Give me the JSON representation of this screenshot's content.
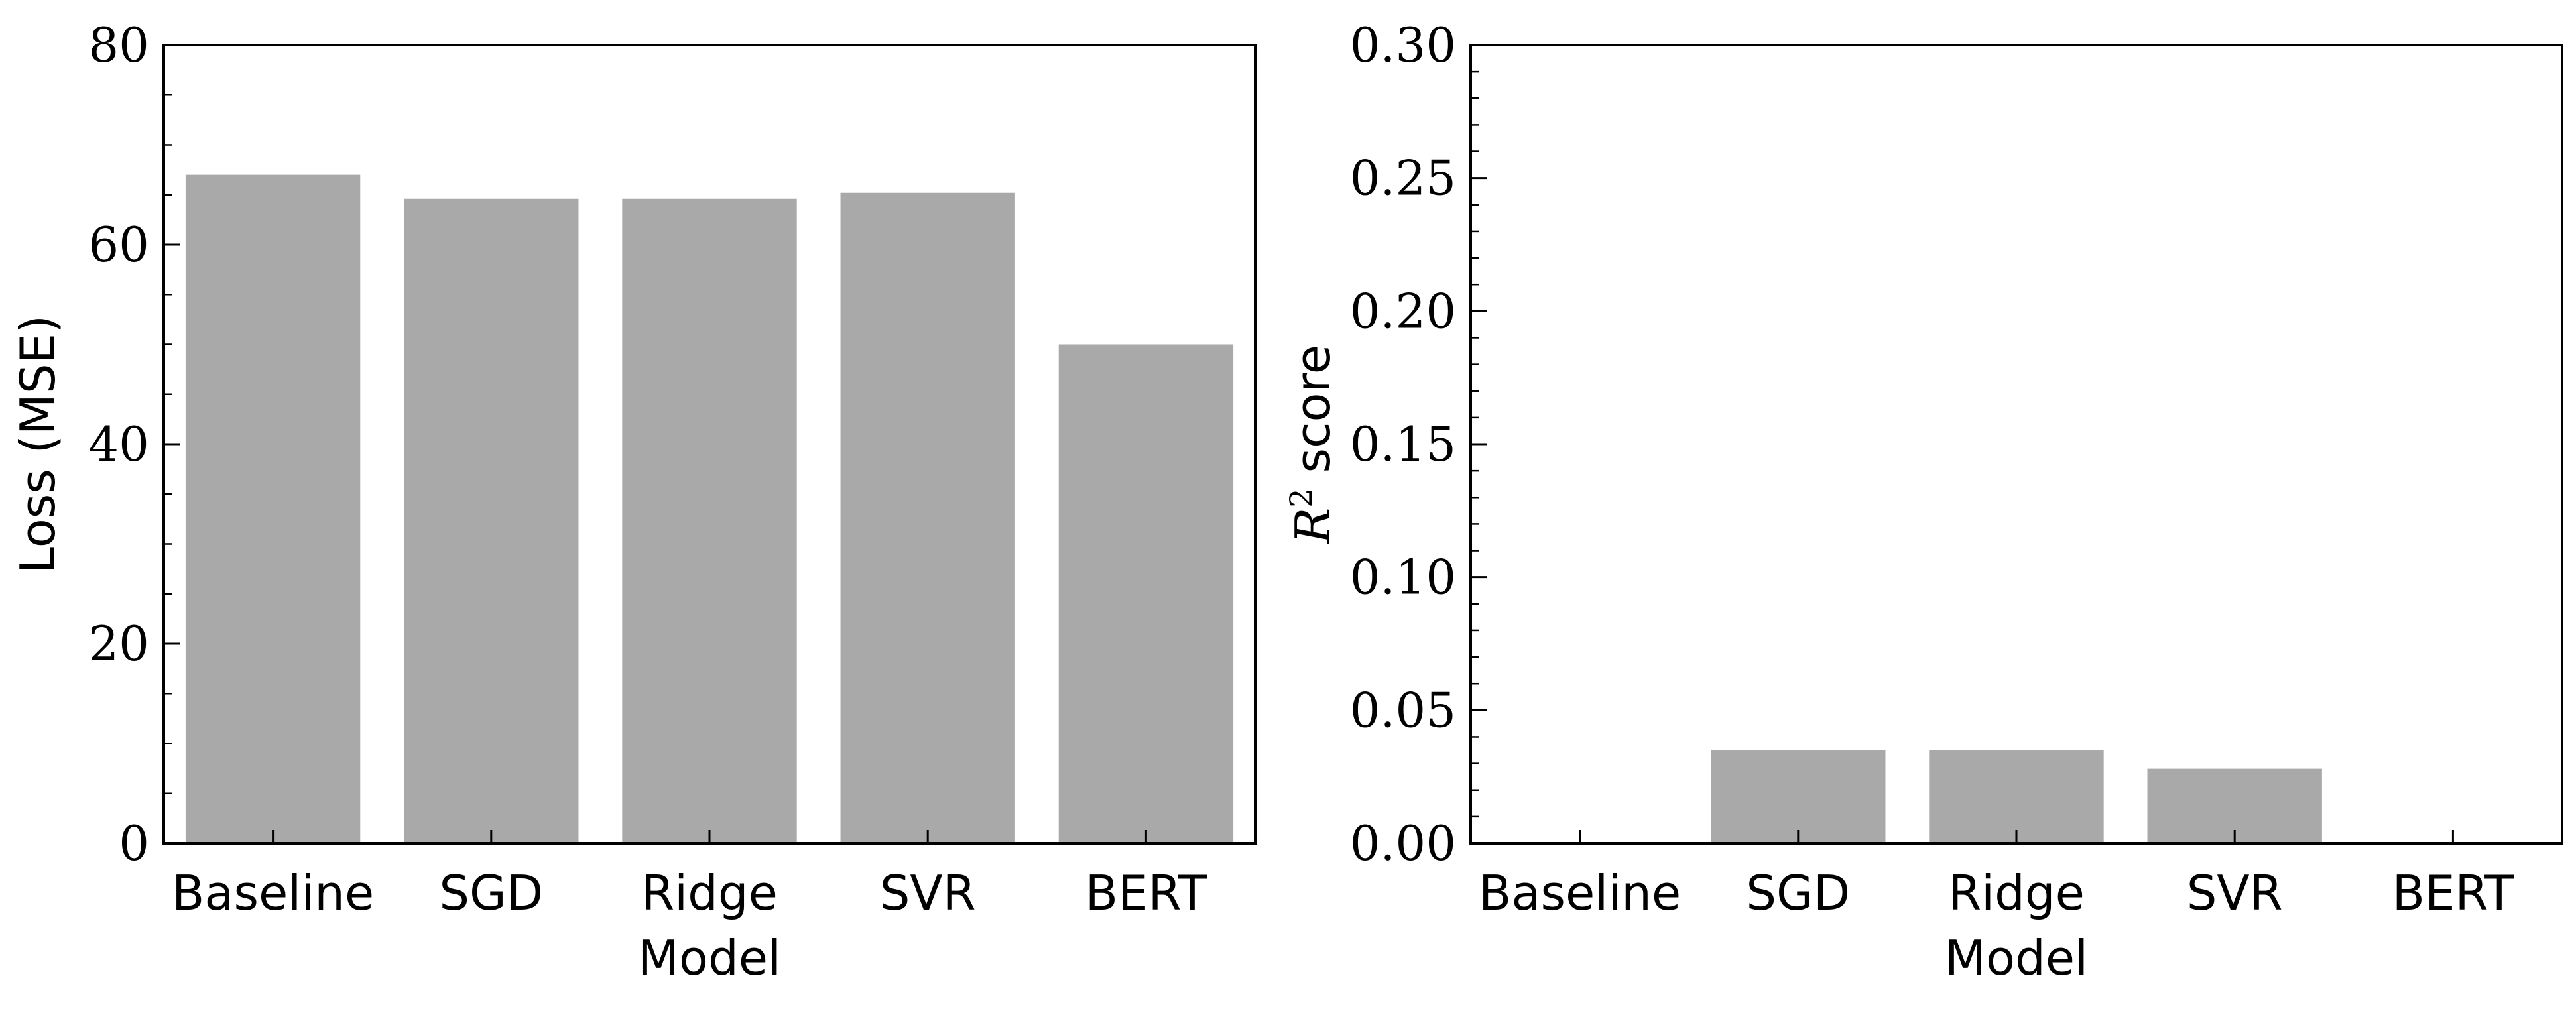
{
  "chart_data": [
    {
      "type": "bar",
      "categories": [
        "Baseline",
        "SGD",
        "Ridge",
        "SVR",
        "BERT"
      ],
      "values": [
        67.0,
        64.6,
        64.6,
        65.2,
        50.0
      ],
      "xlabel": "Model",
      "ylabel": "Loss (MSE)",
      "ylim": [
        0,
        80
      ],
      "yticks": [
        0,
        20,
        40,
        60,
        80
      ],
      "ytick_labels": [
        "0",
        "20",
        "40",
        "60",
        "80"
      ],
      "minor_step": 5,
      "bar_color": "#a9a9a9",
      "grid": false
    },
    {
      "type": "bar",
      "categories": [
        "Baseline",
        "SGD",
        "Ridge",
        "SVR",
        "BERT"
      ],
      "values": [
        0.0,
        0.035,
        0.035,
        0.028,
        0.0
      ],
      "xlabel": "Model",
      "ylabel_math": "R",
      "ylabel_sup": "2",
      "ylabel_text": " score",
      "ylim": [
        0,
        0.3
      ],
      "yticks": [
        0,
        0.05,
        0.1,
        0.15,
        0.2,
        0.25,
        0.3
      ],
      "ytick_labels": [
        "0.00",
        "0.05",
        "0.10",
        "0.15",
        "0.20",
        "0.25",
        "0.30"
      ],
      "minor_step": 0.01,
      "bar_color": "#a9a9a9",
      "grid": false
    }
  ]
}
